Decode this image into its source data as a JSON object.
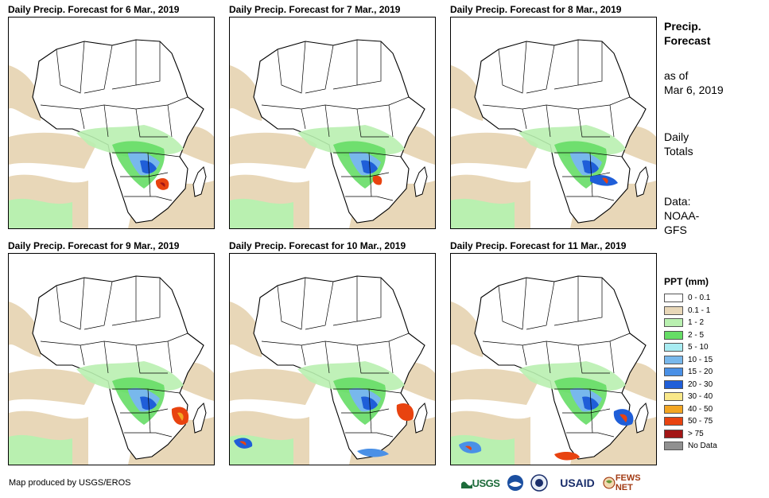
{
  "panels": [
    {
      "title": "Daily Precip. Forecast for 6 Mar., 2019"
    },
    {
      "title": "Daily Precip. Forecast for 7 Mar., 2019"
    },
    {
      "title": "Daily Precip. Forecast for 8 Mar., 2019"
    },
    {
      "title": "Daily Precip. Forecast for 9 Mar., 2019"
    },
    {
      "title": "Daily Precip. Forecast for 10 Mar., 2019"
    },
    {
      "title": "Daily Precip. Forecast for 11 Mar., 2019"
    }
  ],
  "sidebar": {
    "title_line1": "Precip.",
    "title_line2": "Forecast",
    "asof_line1": "as of",
    "asof_line2": "Mar 6, 2019",
    "totals_line1": "Daily",
    "totals_line2": "Totals",
    "data_line1": "Data:",
    "data_line2": "NOAA-",
    "data_line3": "GFS"
  },
  "legend": {
    "title": "PPT (mm)",
    "items": [
      {
        "label": "0 - 0.1",
        "color": "#ffffff"
      },
      {
        "label": "0.1 - 1",
        "color": "#e8d7b8"
      },
      {
        "label": "1 - 2",
        "color": "#b9f0b0"
      },
      {
        "label": "2 - 5",
        "color": "#66dd66"
      },
      {
        "label": "5 - 10",
        "color": "#a8ecf2"
      },
      {
        "label": "10 - 15",
        "color": "#78b8ec"
      },
      {
        "label": "15 - 20",
        "color": "#4a90e6"
      },
      {
        "label": "20 - 30",
        "color": "#1f5ed8"
      },
      {
        "label": "30 - 40",
        "color": "#f9e889"
      },
      {
        "label": "40 - 50",
        "color": "#f3a623"
      },
      {
        "label": "50 - 75",
        "color": "#e84310"
      },
      {
        "label": "> 75",
        "color": "#a31616"
      },
      {
        "label": "No Data",
        "color": "#909090"
      }
    ]
  },
  "footer": {
    "credit": "Map produced by USGS/EROS",
    "logos": {
      "usgs": "USGS",
      "usaid": "USAID",
      "fews": "FEWS NET"
    }
  }
}
